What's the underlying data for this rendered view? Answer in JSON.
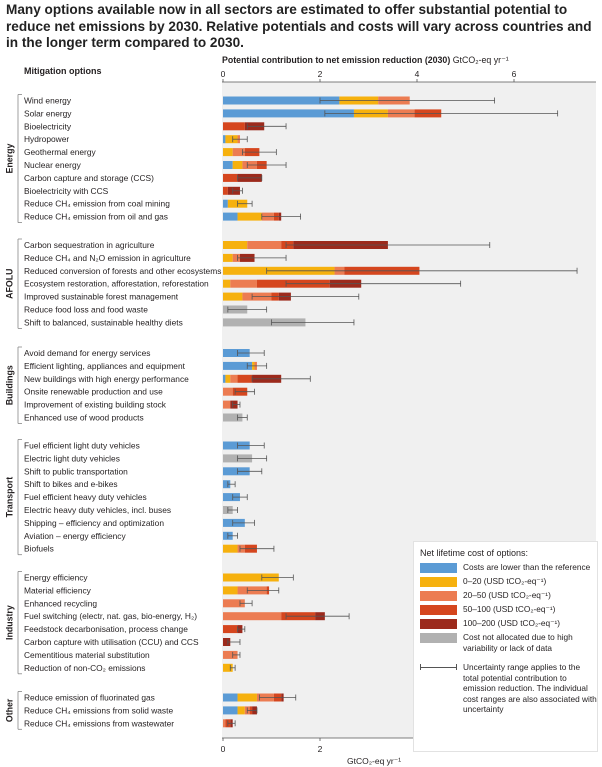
{
  "headline": "Many options available now in all sectors are estimated to offer substantial potential to reduce net emissions by 2030. Relative potentials and costs will vary across countries and in the longer term compared to 2030.",
  "chart_data": {
    "type": "bar",
    "orientation": "horizontal-stacked",
    "row_header": "Mitigation options",
    "xlabel_top": "Potential contribution to net emission reduction (2030)",
    "x_unit_top": "GtCO₂-eq yr⁻¹",
    "xlabel_bottom": "GtCO₂-eq yr⁻¹",
    "xlim": [
      0,
      7.5
    ],
    "xticks": [
      0,
      2,
      4,
      6
    ],
    "grid": false,
    "legend_position": "bottom-right",
    "colors": {
      "neg": "#5b9bd5",
      "c0_20": "#f6b10e",
      "c20_50": "#ec7c52",
      "c50_100": "#d5461e",
      "c100_200": "#9c2a1c",
      "na": "#b1b1b1"
    },
    "legend": {
      "title": "Net lifetime cost of options:",
      "items": [
        {
          "key": "neg",
          "label": "Costs are lower than the reference"
        },
        {
          "key": "c0_20",
          "label": "0–20 (USD tCO₂-eq⁻¹)"
        },
        {
          "key": "c20_50",
          "label": "20–50 (USD tCO₂-eq⁻¹)"
        },
        {
          "key": "c50_100",
          "label": "50–100 (USD tCO₂-eq⁻¹)"
        },
        {
          "key": "c100_200",
          "label": "100–200 (USD tCO₂-eq⁻¹)"
        },
        {
          "key": "na",
          "label": "Cost not allocated due to high variability or lack of data"
        }
      ],
      "uncertainty_note": "Uncertainty range applies to the total potential contribution to emission reduction. The individual cost ranges are also associated with uncertainty"
    },
    "sectors": [
      {
        "name": "Energy",
        "rows": [
          {
            "label": "Wind energy",
            "segments": [
              [
                "neg",
                2.4
              ],
              [
                "c0_20",
                0.8
              ],
              [
                "c20_50",
                0.65
              ]
            ],
            "range": [
              2.0,
              5.6
            ]
          },
          {
            "label": "Solar energy",
            "segments": [
              [
                "neg",
                2.7
              ],
              [
                "c0_20",
                0.7
              ],
              [
                "c20_50",
                0.55
              ],
              [
                "c50_100",
                0.55
              ]
            ],
            "range": [
              2.1,
              6.9
            ]
          },
          {
            "label": "Bioelectricity",
            "segments": [
              [
                "c50_100",
                0.45
              ],
              [
                "c100_200",
                0.4
              ]
            ],
            "range": [
              0.5,
              1.3
            ]
          },
          {
            "label": "Hydropower",
            "segments": [
              [
                "neg",
                0.05
              ],
              [
                "c0_20",
                0.25
              ],
              [
                "c20_50",
                0.05
              ]
            ],
            "range": [
              0.2,
              0.5
            ]
          },
          {
            "label": "Geothermal energy",
            "segments": [
              [
                "c0_20",
                0.2
              ],
              [
                "c20_50",
                0.25
              ],
              [
                "c50_100",
                0.3
              ]
            ],
            "range": [
              0.4,
              1.1
            ]
          },
          {
            "label": "Nuclear energy",
            "segments": [
              [
                "neg",
                0.2
              ],
              [
                "c0_20",
                0.2
              ],
              [
                "c20_50",
                0.3
              ],
              [
                "c50_100",
                0.2
              ]
            ],
            "range": [
              0.5,
              1.3
            ]
          },
          {
            "label": "Carbon capture and storage (CCS)",
            "segments": [
              [
                "c50_100",
                0.3
              ],
              [
                "c100_200",
                0.5
              ]
            ],
            "range": [
              0.3,
              0.8
            ]
          },
          {
            "label": "Bioelectricity with CCS",
            "segments": [
              [
                "c50_100",
                0.1
              ],
              [
                "c100_200",
                0.25
              ]
            ],
            "range": [
              0.2,
              0.4
            ]
          },
          {
            "label": "Reduce CH₄ emission from coal mining",
            "segments": [
              [
                "neg",
                0.1
              ],
              [
                "c0_20",
                0.4
              ]
            ],
            "range": [
              0.3,
              0.6
            ]
          },
          {
            "label": "Reduce CH₄ emission from oil and gas",
            "segments": [
              [
                "neg",
                0.3
              ],
              [
                "c0_20",
                0.5
              ],
              [
                "c20_50",
                0.25
              ],
              [
                "c50_100",
                0.1
              ],
              [
                "c100_200",
                0.05
              ]
            ],
            "range": [
              0.8,
              1.6
            ]
          }
        ]
      },
      {
        "name": "AFOLU",
        "rows": [
          {
            "label": "Carbon sequestration in agriculture",
            "segments": [
              [
                "c0_20",
                0.5
              ],
              [
                "c20_50",
                0.7
              ],
              [
                "c50_100",
                0.25
              ],
              [
                "c100_200",
                1.95
              ]
            ],
            "range": [
              1.3,
              5.5
            ]
          },
          {
            "label": "Reduce CH₄ and N₂O emission in agriculture",
            "segments": [
              [
                "c0_20",
                0.2
              ],
              [
                "c20_50",
                0.15
              ],
              [
                "c100_200",
                0.3
              ]
            ],
            "range": [
              0.3,
              1.3
            ]
          },
          {
            "label": "Reduced conversion of forests and other ecosystems",
            "segments": [
              [
                "c0_20",
                2.3
              ],
              [
                "c20_50",
                0.2
              ],
              [
                "c50_100",
                1.55
              ]
            ],
            "range": [
              0.9,
              7.3
            ]
          },
          {
            "label": "Ecosystem restoration, afforestation, reforestation",
            "segments": [
              [
                "c0_20",
                0.15
              ],
              [
                "c20_50",
                0.55
              ],
              [
                "c50_100",
                1.5
              ],
              [
                "c100_200",
                0.65
              ]
            ],
            "range": [
              1.3,
              4.9
            ]
          },
          {
            "label": "Improved sustainable forest management",
            "segments": [
              [
                "c0_20",
                0.4
              ],
              [
                "c20_50",
                0.6
              ],
              [
                "c50_100",
                0.15
              ],
              [
                "c100_200",
                0.25
              ]
            ],
            "range": [
              0.6,
              2.8
            ]
          },
          {
            "label": "Reduce food loss and food waste",
            "segments": [
              [
                "na",
                0.5
              ]
            ],
            "range": [
              0.1,
              0.9
            ]
          },
          {
            "label": "Shift to balanced, sustainable healthy diets",
            "segments": [
              [
                "na",
                1.7
              ]
            ],
            "range": [
              1.0,
              2.7
            ]
          }
        ]
      },
      {
        "name": "Buildings",
        "rows": [
          {
            "label": "Avoid demand for energy services",
            "segments": [
              [
                "neg",
                0.55
              ]
            ],
            "range": [
              0.3,
              0.85
            ]
          },
          {
            "label": "Efficient lighting, appliances and equipment",
            "segments": [
              [
                "neg",
                0.6
              ],
              [
                "c0_20",
                0.05
              ],
              [
                "c20_50",
                0.05
              ]
            ],
            "range": [
              0.5,
              0.9
            ]
          },
          {
            "label": "New buildings with high energy performance",
            "segments": [
              [
                "neg",
                0.05
              ],
              [
                "c0_20",
                0.1
              ],
              [
                "c20_50",
                0.15
              ],
              [
                "c50_100",
                0.3
              ],
              [
                "c100_200",
                0.6
              ]
            ],
            "range": [
              0.6,
              1.8
            ]
          },
          {
            "label": "Onsite renewable production and use",
            "segments": [
              [
                "c20_50",
                0.2
              ],
              [
                "c50_100",
                0.3
              ]
            ],
            "range": [
              0.25,
              0.65
            ]
          },
          {
            "label": "Improvement of existing building stock",
            "segments": [
              [
                "c20_50",
                0.15
              ],
              [
                "c100_200",
                0.15
              ]
            ],
            "range": [
              0.2,
              0.35
            ]
          },
          {
            "label": "Enhanced use of wood products",
            "segments": [
              [
                "na",
                0.4
              ]
            ],
            "range": [
              0.3,
              0.5
            ]
          }
        ]
      },
      {
        "name": "Transport",
        "rows": [
          {
            "label": "Fuel efficient light duty vehicles",
            "segments": [
              [
                "neg",
                0.55
              ]
            ],
            "range": [
              0.3,
              0.85
            ]
          },
          {
            "label": "Electric light duty vehicles",
            "segments": [
              [
                "na",
                0.6
              ]
            ],
            "range": [
              0.3,
              0.9
            ]
          },
          {
            "label": "Shift to public transportation",
            "segments": [
              [
                "neg",
                0.55
              ]
            ],
            "range": [
              0.3,
              0.8
            ]
          },
          {
            "label": "Shift to bikes and e-bikes",
            "segments": [
              [
                "neg",
                0.15
              ]
            ],
            "range": [
              0.1,
              0.25
            ]
          },
          {
            "label": "Fuel efficient heavy duty vehicles",
            "segments": [
              [
                "neg",
                0.35
              ]
            ],
            "range": [
              0.2,
              0.5
            ]
          },
          {
            "label": "Electric heavy duty vehicles, incl. buses",
            "segments": [
              [
                "na",
                0.2
              ]
            ],
            "range": [
              0.1,
              0.3
            ]
          },
          {
            "label": "Shipping – efficiency and optimization",
            "segments": [
              [
                "neg",
                0.45
              ]
            ],
            "range": [
              0.2,
              0.65
            ]
          },
          {
            "label": "Aviation – energy efficiency",
            "segments": [
              [
                "neg",
                0.2
              ]
            ],
            "range": [
              0.1,
              0.3
            ]
          },
          {
            "label": "Biofuels",
            "segments": [
              [
                "c0_20",
                0.3
              ],
              [
                "c20_50",
                0.15
              ],
              [
                "c50_100",
                0.25
              ]
            ],
            "range": [
              0.35,
              1.05
            ]
          }
        ]
      },
      {
        "name": "Industry",
        "rows": [
          {
            "label": "Energy efficiency",
            "segments": [
              [
                "c0_20",
                1.15
              ]
            ],
            "range": [
              0.8,
              1.45
            ]
          },
          {
            "label": "Material efficiency",
            "segments": [
              [
                "c0_20",
                0.3
              ],
              [
                "c20_50",
                0.6
              ],
              [
                "c50_100",
                0.05
              ]
            ],
            "range": [
              0.5,
              1.15
            ]
          },
          {
            "label": "Enhanced recycling",
            "segments": [
              [
                "c20_50",
                0.45
              ]
            ],
            "range": [
              0.35,
              0.6
            ]
          },
          {
            "label": "Fuel switching (electr, nat. gas, bio-energy, H₂)",
            "segments": [
              [
                "c20_50",
                1.2
              ],
              [
                "c50_100",
                0.7
              ],
              [
                "c100_200",
                0.2
              ]
            ],
            "range": [
              1.3,
              2.6
            ]
          },
          {
            "label": "Feedstock decarbonisation, process change",
            "segments": [
              [
                "c50_100",
                0.3
              ],
              [
                "c100_200",
                0.1
              ]
            ],
            "range": [
              0.3,
              0.45
            ]
          },
          {
            "label": "Carbon capture with utilisation (CCU) and CCS",
            "segments": [
              [
                "c100_200",
                0.15
              ]
            ],
            "range": [
              0.1,
              0.35
            ]
          },
          {
            "label": "Cementitious material substitution",
            "segments": [
              [
                "c20_50",
                0.3
              ]
            ],
            "range": [
              0.2,
              0.35
            ]
          },
          {
            "label": "Reduction of non-CO₂ emissions",
            "segments": [
              [
                "c0_20",
                0.2
              ]
            ],
            "range": [
              0.15,
              0.25
            ]
          }
        ]
      },
      {
        "name": "Other",
        "rows": [
          {
            "label": "Reduce emission of fluorinated gas",
            "segments": [
              [
                "neg",
                0.3
              ],
              [
                "c0_20",
                0.4
              ],
              [
                "c20_50",
                0.35
              ],
              [
                "c50_100",
                0.15
              ],
              [
                "c100_200",
                0.05
              ]
            ],
            "range": [
              0.75,
              1.5
            ]
          },
          {
            "label": "Reduce CH₄ emissions from solid waste",
            "segments": [
              [
                "neg",
                0.3
              ],
              [
                "c0_20",
                0.15
              ],
              [
                "c20_50",
                0.1
              ],
              [
                "c50_100",
                0.05
              ],
              [
                "c100_200",
                0.1
              ]
            ],
            "range": [
              0.5,
              0.7
            ]
          },
          {
            "label": "Reduce CH₄ emissions from wastewater",
            "segments": [
              [
                "c20_50",
                0.05
              ],
              [
                "c50_100",
                0.1
              ],
              [
                "c100_200",
                0.05
              ]
            ],
            "range": [
              0.1,
              0.25
            ]
          }
        ]
      }
    ]
  }
}
